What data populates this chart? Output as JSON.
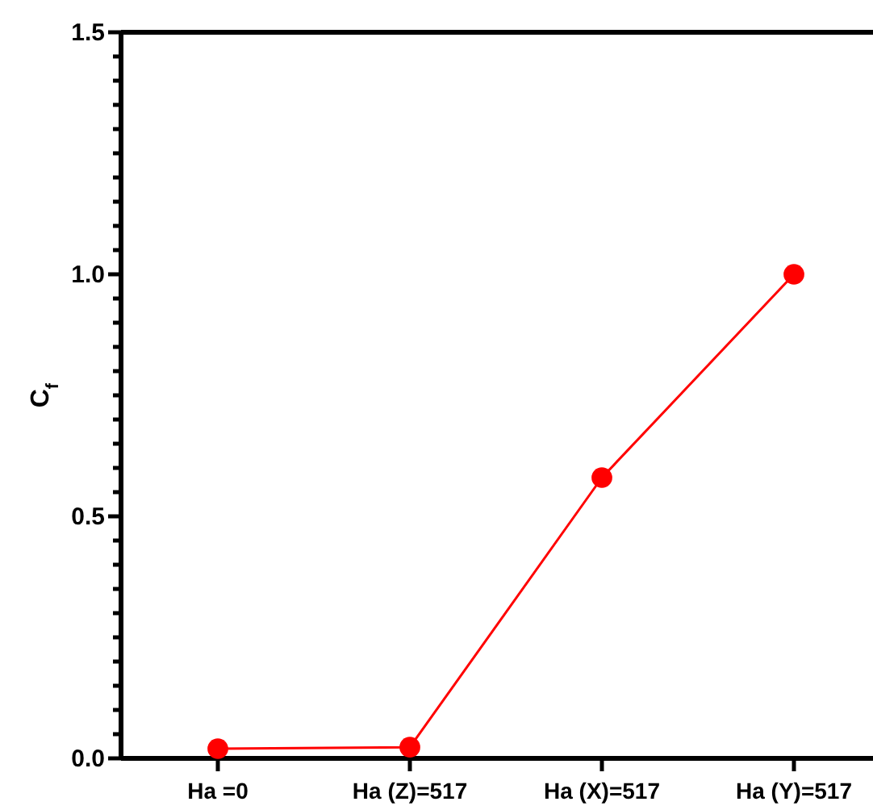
{
  "chart_data": {
    "type": "line",
    "ylabel": "C$_{f}$",
    "categories": [
      "Ha =0",
      "Ha (Z)=517",
      "Ha (X)=517",
      "Ha (Y)=517"
    ],
    "series": [
      {
        "color": "#ff0000",
        "values": [
          0.02,
          0.023,
          0.58,
          1.0
        ]
      }
    ],
    "ylim": [
      0,
      1.5
    ],
    "yticks": [
      {
        "value": 0,
        "label": "0.0"
      },
      {
        "value": 0.05,
        "label": null
      },
      {
        "value": 0.1,
        "label": null
      },
      {
        "value": 0.15,
        "label": null
      },
      {
        "value": 0.2,
        "label": null
      },
      {
        "value": 0.25,
        "label": null
      },
      {
        "value": 0.3,
        "label": null
      },
      {
        "value": 0.35,
        "label": null
      },
      {
        "value": 0.4,
        "label": null
      },
      {
        "value": 0.45,
        "label": null
      },
      {
        "value": 0.5,
        "label": "0.5"
      },
      {
        "value": 0.55,
        "label": null
      },
      {
        "value": 0.6,
        "label": null
      },
      {
        "value": 0.65,
        "label": null
      },
      {
        "value": 0.7,
        "label": null
      },
      {
        "value": 0.75,
        "label": null
      },
      {
        "value": 0.8,
        "label": null
      },
      {
        "value": 0.85,
        "label": null
      },
      {
        "value": 0.9,
        "label": null
      },
      {
        "value": 0.95,
        "label": null
      },
      {
        "value": 1.0,
        "label": "1.0"
      },
      {
        "value": 1.05,
        "label": null
      },
      {
        "value": 1.1,
        "label": null
      },
      {
        "value": 1.15,
        "label": null
      },
      {
        "value": 1.2,
        "label": null
      },
      {
        "value": 1.25,
        "label": null
      },
      {
        "value": 1.3,
        "label": null
      },
      {
        "value": 1.35,
        "label": null
      },
      {
        "value": 1.4,
        "label": null
      },
      {
        "value": 1.45,
        "label": null
      },
      {
        "value": 1.5,
        "label": "1.5"
      }
    ],
    "grid": false,
    "marker": "circle",
    "line_style": "solid"
  }
}
